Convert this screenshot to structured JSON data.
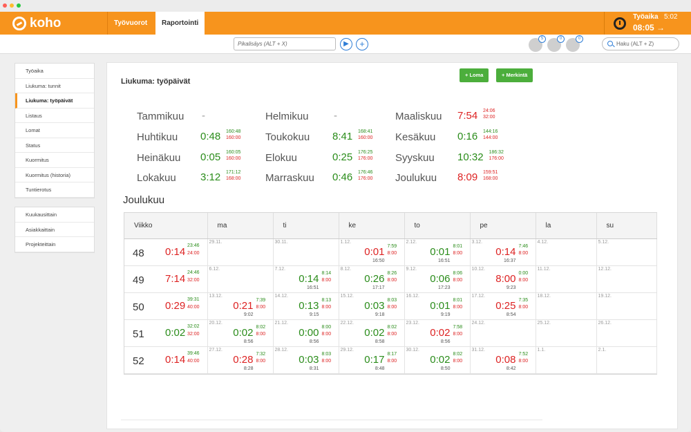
{
  "app": {
    "brand": "koho"
  },
  "nav": {
    "tab_shifts": "Työvuorot",
    "tab_reports": "Raportointi"
  },
  "worktime": {
    "label": "Työaika",
    "elapsed": "5:02",
    "clock": "08:05 →"
  },
  "toolbar": {
    "quick_add_placeholder": "Pikalisäys (ALT + X)",
    "search_placeholder": "Haku (ALT + Z)",
    "badge_1": "5",
    "badge_2": "0",
    "badge_3": "0"
  },
  "sidebar": {
    "group1": [
      "Työaika",
      "Liukuma: tunnit",
      "Liukuma: työpäivät",
      "Listaus",
      "Lomat",
      "Status",
      "Kuormitus",
      "Kuormitus (historia)",
      "Tuntierotus"
    ],
    "group2": [
      "Kuukausittain",
      "Asiakkaittain",
      "Projekteittain"
    ],
    "active_index": 2
  },
  "page": {
    "title": "Liukuma: työpäivät",
    "btn_leave": "+ Loma",
    "btn_mark": "+ Merkintä",
    "section_title": "Joulukuu"
  },
  "months": [
    {
      "name": "Tammikuu",
      "flex": "-",
      "done": "",
      "target": "",
      "sign": "muted"
    },
    {
      "name": "Helmikuu",
      "flex": "-",
      "done": "",
      "target": "",
      "sign": "muted"
    },
    {
      "name": "Maaliskuu",
      "flex": "7:54",
      "done": "24:06",
      "target": "32:00",
      "sign": "neg"
    },
    {
      "name": "Huhtikuu",
      "flex": "0:48",
      "done": "160:48",
      "target": "160:00",
      "sign": "pos"
    },
    {
      "name": "Toukokuu",
      "flex": "8:41",
      "done": "168:41",
      "target": "160:00",
      "sign": "pos"
    },
    {
      "name": "Kesäkuu",
      "flex": "0:16",
      "done": "144:16",
      "target": "144:00",
      "sign": "pos"
    },
    {
      "name": "Heinäkuu",
      "flex": "0:05",
      "done": "160:05",
      "target": "160:00",
      "sign": "pos"
    },
    {
      "name": "Elokuu",
      "flex": "0:25",
      "done": "176:25",
      "target": "176:00",
      "sign": "pos"
    },
    {
      "name": "Syyskuu",
      "flex": "10:32",
      "done": "186:32",
      "target": "176:00",
      "sign": "pos"
    },
    {
      "name": "Lokakuu",
      "flex": "3:12",
      "done": "171:12",
      "target": "168:00",
      "sign": "pos"
    },
    {
      "name": "Marraskuu",
      "flex": "0:46",
      "done": "176:46",
      "target": "176:00",
      "sign": "pos"
    },
    {
      "name": "Joulukuu",
      "flex": "8:09",
      "done": "159:51",
      "target": "168:00",
      "sign": "neg"
    }
  ],
  "table": {
    "headers": [
      "Viikko",
      "ma",
      "ti",
      "ke",
      "to",
      "pe",
      "la",
      "su"
    ],
    "weeks": [
      {
        "week": "48",
        "flex": "0:14",
        "done": "23:46",
        "target": "24:00",
        "sign": "neg",
        "days": [
          {
            "date": "29.11."
          },
          {
            "date": "30.11."
          },
          {
            "date": "1.12.",
            "flex": "0:01",
            "done": "7:59",
            "target": "8:00",
            "worked": "16:50",
            "sign": "neg"
          },
          {
            "date": "2.12.",
            "flex": "0:01",
            "done": "8:01",
            "target": "8:00",
            "worked": "16:51",
            "sign": "pos"
          },
          {
            "date": "3.12.",
            "flex": "0:14",
            "done": "7:46",
            "target": "8:00",
            "worked": "16:37",
            "sign": "neg"
          },
          {
            "date": "4.12."
          },
          {
            "date": "5.12."
          }
        ]
      },
      {
        "week": "49",
        "flex": "7:14",
        "done": "24:46",
        "target": "32:00",
        "sign": "neg",
        "days": [
          {
            "date": "6.12."
          },
          {
            "date": "7.12.",
            "flex": "0:14",
            "done": "8:14",
            "target": "8:00",
            "worked": "16:51",
            "sign": "pos"
          },
          {
            "date": "8.12.",
            "flex": "0:26",
            "done": "8:26",
            "target": "8:00",
            "worked": "17:17",
            "sign": "pos"
          },
          {
            "date": "9.12.",
            "flex": "0:06",
            "done": "8:06",
            "target": "8:00",
            "worked": "17:23",
            "sign": "pos"
          },
          {
            "date": "10.12.",
            "flex": "8:00",
            "done": "0:00",
            "target": "8:00",
            "worked": "9:23",
            "sign": "neg"
          },
          {
            "date": "11.12."
          },
          {
            "date": "12.12."
          }
        ]
      },
      {
        "week": "50",
        "flex": "0:29",
        "done": "39:31",
        "target": "40:00",
        "sign": "neg",
        "days": [
          {
            "date": "13.12.",
            "flex": "0:21",
            "done": "7:39",
            "target": "8:00",
            "worked": "9:02",
            "sign": "neg"
          },
          {
            "date": "14.12.",
            "flex": "0:13",
            "done": "8:13",
            "target": "8:00",
            "worked": "9:15",
            "sign": "pos"
          },
          {
            "date": "15.12.",
            "flex": "0:03",
            "done": "8:03",
            "target": "8:00",
            "worked": "9:18",
            "sign": "pos"
          },
          {
            "date": "16.12.",
            "flex": "0:01",
            "done": "8:01",
            "target": "8:00",
            "worked": "9:19",
            "sign": "pos"
          },
          {
            "date": "17.12.",
            "flex": "0:25",
            "done": "7:35",
            "target": "8:00",
            "worked": "8:54",
            "sign": "neg"
          },
          {
            "date": "18.12."
          },
          {
            "date": "19.12."
          }
        ]
      },
      {
        "week": "51",
        "flex": "0:02",
        "done": "32:02",
        "target": "32:00",
        "sign": "pos",
        "days": [
          {
            "date": "20.12.",
            "flex": "0:02",
            "done": "8:02",
            "target": "8:00",
            "worked": "8:56",
            "sign": "pos"
          },
          {
            "date": "21.12.",
            "flex": "0:00",
            "done": "8:00",
            "target": "8:00",
            "worked": "8:56",
            "sign": "pos"
          },
          {
            "date": "22.12.",
            "flex": "0:02",
            "done": "8:02",
            "target": "8:00",
            "worked": "8:58",
            "sign": "pos"
          },
          {
            "date": "23.12.",
            "flex": "0:02",
            "done": "7:58",
            "target": "8:00",
            "worked": "8:56",
            "sign": "neg"
          },
          {
            "date": "24.12."
          },
          {
            "date": "25.12."
          },
          {
            "date": "26.12."
          }
        ]
      },
      {
        "week": "52",
        "flex": "0:14",
        "done": "39:46",
        "target": "40:00",
        "sign": "neg",
        "days": [
          {
            "date": "27.12.",
            "flex": "0:28",
            "done": "7:32",
            "target": "8:00",
            "worked": "8:28",
            "sign": "neg"
          },
          {
            "date": "28.12.",
            "flex": "0:03",
            "done": "8:03",
            "target": "8:00",
            "worked": "8:31",
            "sign": "pos"
          },
          {
            "date": "29.12.",
            "flex": "0:17",
            "done": "8:17",
            "target": "8:00",
            "worked": "8:48",
            "sign": "pos"
          },
          {
            "date": "30.12.",
            "flex": "0:02",
            "done": "8:02",
            "target": "8:00",
            "worked": "8:50",
            "sign": "pos"
          },
          {
            "date": "31.12.",
            "flex": "0:08",
            "done": "7:52",
            "target": "8:00",
            "worked": "8:42",
            "sign": "neg"
          },
          {
            "date": "1.1."
          },
          {
            "date": "2.1."
          }
        ]
      }
    ]
  }
}
